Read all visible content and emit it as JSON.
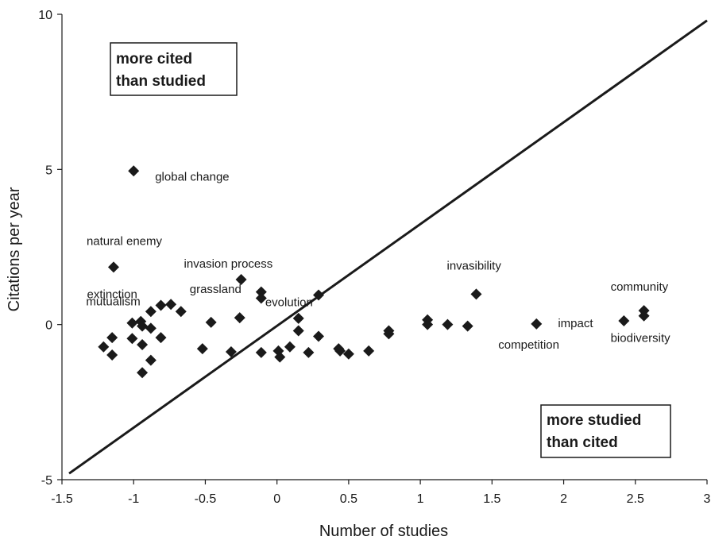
{
  "chart_data": {
    "type": "scatter",
    "title": "",
    "xlabel": "Number of studies",
    "ylabel": "Citations per year",
    "xlim": [
      -1.5,
      3
    ],
    "ylim": [
      -5,
      10
    ],
    "xticks": [
      "-1.5",
      "-1",
      "-0.5",
      "0",
      "0.5",
      "1",
      "1.5",
      "2",
      "2.5",
      "3"
    ],
    "yticks": [
      "-5",
      "0",
      "5",
      "10"
    ],
    "grid": false,
    "marker": "diamond",
    "marker_color": "#1a1a1a",
    "reference_line": {
      "x": [
        -1.45,
        3
      ],
      "y": [
        -4.8,
        9.8
      ]
    },
    "regions": {
      "upper_left": [
        "more cited",
        "than studied"
      ],
      "lower_right": [
        "more studied",
        "than cited"
      ]
    },
    "points": [
      {
        "x": -1.0,
        "y": 4.95,
        "label": "global change"
      },
      {
        "x": -1.14,
        "y": 1.85,
        "label": "natural enemy"
      },
      {
        "x": -0.25,
        "y": 1.45,
        "label": "invasion process"
      },
      {
        "x": -0.11,
        "y": 1.05,
        "label": "evolution"
      },
      {
        "x": -0.11,
        "y": 0.85,
        "label": ""
      },
      {
        "x": -0.81,
        "y": 0.62,
        "label": "extinction"
      },
      {
        "x": -0.74,
        "y": 0.65,
        "label": ""
      },
      {
        "x": -0.67,
        "y": 0.42,
        "label": ""
      },
      {
        "x": -0.88,
        "y": 0.42,
        "label": ""
      },
      {
        "x": -0.26,
        "y": 0.22,
        "label": "grassland"
      },
      {
        "x": -1.01,
        "y": 0.05,
        "label": "mutualism"
      },
      {
        "x": -0.95,
        "y": 0.1,
        "label": ""
      },
      {
        "x": -0.94,
        "y": -0.05,
        "label": ""
      },
      {
        "x": -0.88,
        "y": -0.12,
        "label": ""
      },
      {
        "x": -1.15,
        "y": -0.42,
        "label": ""
      },
      {
        "x": -1.01,
        "y": -0.45,
        "label": ""
      },
      {
        "x": -0.94,
        "y": -0.65,
        "label": ""
      },
      {
        "x": -0.81,
        "y": -0.42,
        "label": ""
      },
      {
        "x": -1.21,
        "y": -0.72,
        "label": ""
      },
      {
        "x": -1.15,
        "y": -0.98,
        "label": ""
      },
      {
        "x": -0.88,
        "y": -1.15,
        "label": ""
      },
      {
        "x": -0.94,
        "y": -1.55,
        "label": ""
      },
      {
        "x": -0.46,
        "y": 0.07,
        "label": ""
      },
      {
        "x": -0.52,
        "y": -0.78,
        "label": ""
      },
      {
        "x": -0.32,
        "y": -0.88,
        "label": ""
      },
      {
        "x": -0.11,
        "y": -0.9,
        "label": ""
      },
      {
        "x": 0.01,
        "y": -0.85,
        "label": ""
      },
      {
        "x": 0.02,
        "y": -1.05,
        "label": ""
      },
      {
        "x": 0.09,
        "y": -0.72,
        "label": ""
      },
      {
        "x": 0.15,
        "y": 0.2,
        "label": ""
      },
      {
        "x": 0.15,
        "y": -0.2,
        "label": ""
      },
      {
        "x": 0.22,
        "y": -0.9,
        "label": ""
      },
      {
        "x": 0.29,
        "y": 0.95,
        "label": ""
      },
      {
        "x": 0.29,
        "y": -0.38,
        "label": ""
      },
      {
        "x": 0.43,
        "y": -0.78,
        "label": ""
      },
      {
        "x": 0.44,
        "y": -0.85,
        "label": ""
      },
      {
        "x": 0.5,
        "y": -0.95,
        "label": ""
      },
      {
        "x": 0.64,
        "y": -0.85,
        "label": ""
      },
      {
        "x": 0.78,
        "y": -0.2,
        "label": ""
      },
      {
        "x": 0.78,
        "y": -0.3,
        "label": ""
      },
      {
        "x": 1.05,
        "y": 0.15,
        "label": ""
      },
      {
        "x": 1.05,
        "y": 0.0,
        "label": ""
      },
      {
        "x": 1.19,
        "y": 0.0,
        "label": ""
      },
      {
        "x": 1.33,
        "y": -0.05,
        "label": ""
      },
      {
        "x": 1.39,
        "y": 0.98,
        "label": "invasibility"
      },
      {
        "x": 1.81,
        "y": 0.02,
        "label": "competition"
      },
      {
        "x": 2.42,
        "y": 0.12,
        "label": "impact"
      },
      {
        "x": 2.56,
        "y": 0.45,
        "label": "community"
      },
      {
        "x": 2.56,
        "y": 0.28,
        "label": "biodiversity"
      }
    ]
  }
}
